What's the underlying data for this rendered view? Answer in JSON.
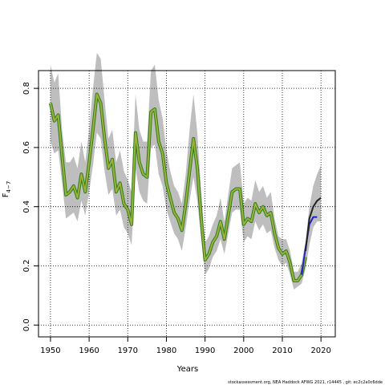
{
  "chart_data": {
    "type": "line",
    "xlabel": "Years",
    "ylabel": "F",
    "ylabel_sub": "4−7",
    "footnote": "stockassessment.org, NEA Haddock AFWG 2021, r14445 , git: ec2c2a0c6dde",
    "xlim": [
      1946.9,
      2023.7
    ],
    "xticks": [
      1950,
      1960,
      1970,
      1980,
      1990,
      2000,
      2010,
      2020
    ],
    "ylim": [
      -0.04,
      0.86
    ],
    "yticks": [
      {
        "value": 0,
        "label": "0.0"
      },
      0.2,
      0.4,
      0.6,
      0.8
    ],
    "grid": true,
    "band_color": "#bebebe",
    "series": [
      {
        "color": "#2e7d1e",
        "inner_color": "#9cb238",
        "x": [
          1950,
          1951,
          1952,
          1953,
          1954,
          1955,
          1956,
          1957,
          1958,
          1959,
          1960,
          1961,
          1962,
          1963,
          1964,
          1965,
          1966,
          1967,
          1968,
          1969,
          1970,
          1971,
          1972,
          1973,
          1974,
          1975,
          1976,
          1977,
          1978,
          1979,
          1980,
          1981,
          1982,
          1983,
          1984,
          1985,
          1986,
          1987,
          1988,
          1989,
          1990,
          1991,
          1992,
          1993,
          1994,
          1995,
          1996,
          1997,
          1998,
          1999,
          2000,
          2001,
          2002,
          2003,
          2004,
          2005,
          2006,
          2007,
          2008,
          2009,
          2010,
          2011,
          2012,
          2013,
          2014,
          2015,
          2016
        ],
        "values": [
          0.75,
          0.69,
          0.71,
          0.57,
          0.44,
          0.45,
          0.47,
          0.43,
          0.51,
          0.45,
          0.55,
          0.66,
          0.78,
          0.75,
          0.63,
          0.53,
          0.56,
          0.45,
          0.48,
          0.41,
          0.39,
          0.34,
          0.65,
          0.55,
          0.51,
          0.5,
          0.72,
          0.73,
          0.62,
          0.58,
          0.48,
          0.43,
          0.38,
          0.36,
          0.32,
          0.41,
          0.52,
          0.63,
          0.53,
          0.36,
          0.22,
          0.24,
          0.28,
          0.3,
          0.35,
          0.29,
          0.37,
          0.45,
          0.46,
          0.46,
          0.34,
          0.36,
          0.35,
          0.41,
          0.38,
          0.4,
          0.37,
          0.38,
          0.31,
          0.26,
          0.24,
          0.25,
          0.21,
          0.15,
          0.15,
          0.17,
          0.23
        ],
        "lower": [
          0.62,
          0.58,
          0.59,
          0.48,
          0.36,
          0.37,
          0.38,
          0.35,
          0.42,
          0.37,
          0.45,
          0.54,
          0.65,
          0.63,
          0.52,
          0.44,
          0.46,
          0.37,
          0.39,
          0.33,
          0.31,
          0.27,
          0.53,
          0.45,
          0.42,
          0.41,
          0.6,
          0.61,
          0.51,
          0.47,
          0.39,
          0.35,
          0.31,
          0.29,
          0.25,
          0.33,
          0.42,
          0.5,
          0.42,
          0.29,
          0.17,
          0.19,
          0.23,
          0.25,
          0.29,
          0.24,
          0.31,
          0.38,
          0.39,
          0.39,
          0.28,
          0.3,
          0.29,
          0.35,
          0.32,
          0.34,
          0.31,
          0.32,
          0.26,
          0.22,
          0.2,
          0.21,
          0.17,
          0.12,
          0.13,
          0.14,
          0.19
        ],
        "upper": [
          0.88,
          0.82,
          0.85,
          0.66,
          0.55,
          0.55,
          0.57,
          0.53,
          0.62,
          0.55,
          0.66,
          0.8,
          0.92,
          0.9,
          0.76,
          0.63,
          0.66,
          0.55,
          0.59,
          0.52,
          0.49,
          0.45,
          0.78,
          0.66,
          0.62,
          0.62,
          0.86,
          0.88,
          0.76,
          0.7,
          0.59,
          0.52,
          0.47,
          0.45,
          0.41,
          0.51,
          0.66,
          0.78,
          0.65,
          0.45,
          0.28,
          0.3,
          0.34,
          0.37,
          0.43,
          0.35,
          0.44,
          0.53,
          0.54,
          0.55,
          0.41,
          0.43,
          0.42,
          0.49,
          0.45,
          0.47,
          0.43,
          0.45,
          0.36,
          0.3,
          0.29,
          0.29,
          0.25,
          0.18,
          0.18,
          0.21,
          0.28
        ]
      },
      {
        "color": "#2020c8",
        "x": [
          2015,
          2016,
          2017,
          2018,
          2019
        ],
        "values": [
          0.17,
          0.26,
          0.34,
          0.365,
          0.365
        ]
      },
      {
        "color": "#222222",
        "x": [
          2016,
          2017,
          2018,
          2019,
          2020
        ],
        "values": [
          0.25,
          0.36,
          0.4,
          0.42,
          0.43
        ],
        "lower": [
          0.19,
          0.27,
          0.33,
          0.35,
          0.35
        ],
        "upper": [
          0.28,
          0.4,
          0.47,
          0.51,
          0.54
        ]
      }
    ]
  }
}
